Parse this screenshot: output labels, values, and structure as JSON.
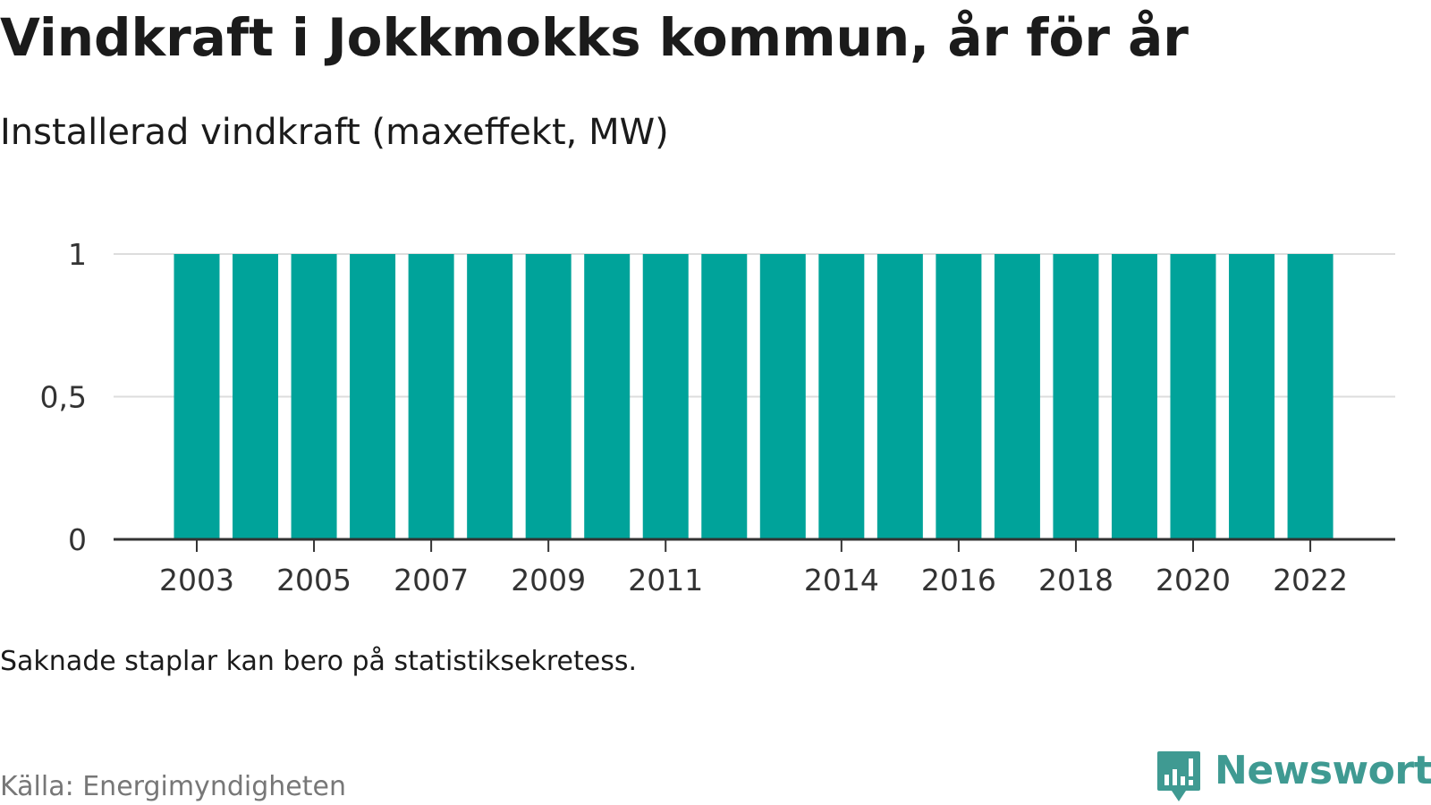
{
  "header": {
    "title": "Vindkraft i Jokkmokks kommun, år för år",
    "subtitle": "Installerad vindkraft (maxeffekt, MW)"
  },
  "footer": {
    "note": "Saknade staplar kan bero på statistiksekretess.",
    "source": "Källa: Energimyndigheten",
    "brand": "Newsworthy"
  },
  "colors": {
    "bar": "#00a39a",
    "grid": "#dddddd",
    "axis": "#333333",
    "brand": "#3f9a92"
  },
  "chart_data": {
    "type": "bar",
    "title": "",
    "xlabel": "",
    "ylabel": "",
    "categories": [
      2003,
      2004,
      2005,
      2006,
      2007,
      2008,
      2009,
      2010,
      2011,
      2012,
      2013,
      2014,
      2015,
      2016,
      2017,
      2018,
      2019,
      2020,
      2021,
      2022
    ],
    "values": [
      1,
      1,
      1,
      1,
      1,
      1,
      1,
      1,
      1,
      1,
      1,
      1,
      1,
      1,
      1,
      1,
      1,
      1,
      1,
      1
    ],
    "ylim": [
      0,
      1
    ],
    "y_ticks": [
      0,
      0.5,
      1
    ],
    "y_tick_labels": [
      "0",
      "0,5",
      "1"
    ],
    "x_tick_labels": [
      "2003",
      "2005",
      "2007",
      "2009",
      "2011",
      "2014",
      "2016",
      "2018",
      "2020",
      "2022"
    ],
    "grid": true,
    "legend": "none"
  }
}
